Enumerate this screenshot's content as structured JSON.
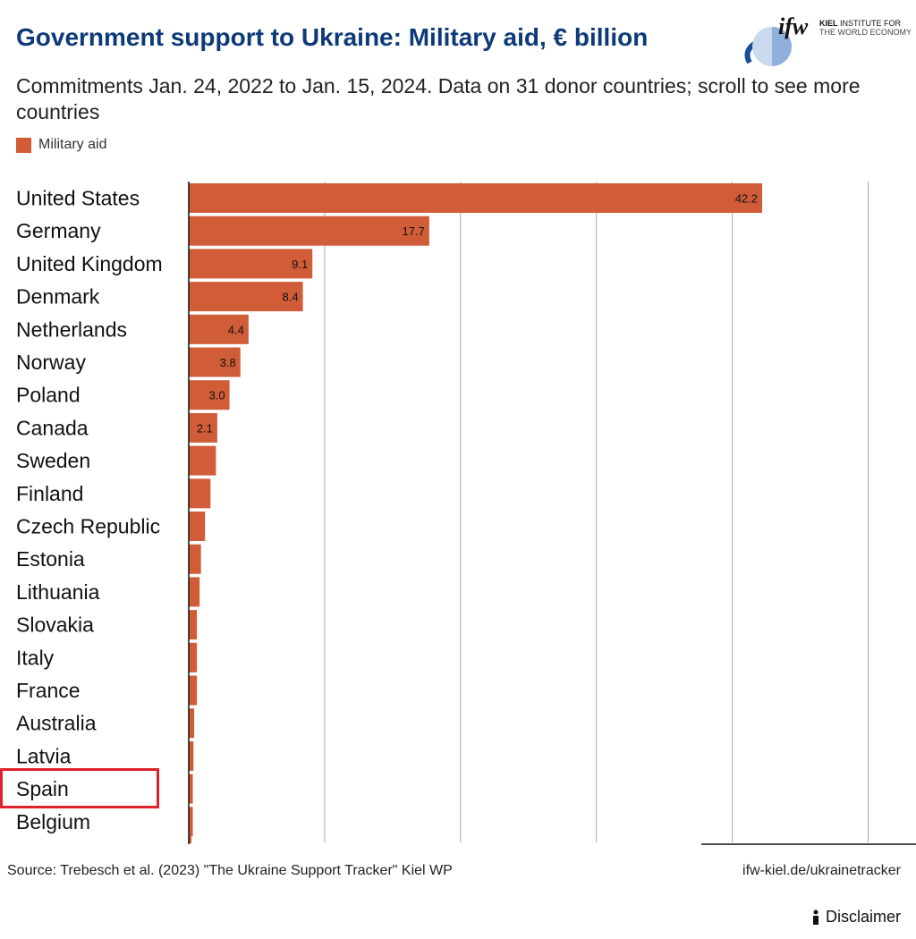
{
  "header": {
    "title": "Government support to Ukraine: Military aid, € billion",
    "subtitle": "Commitments Jan. 24, 2022 to Jan. 15, 2024. Data on 31 donor countries; scroll to see more countries",
    "logo_text": "ifw KIEL INSTITUTE FOR THE WORLD ECONOMY"
  },
  "colors": {
    "bar": "#d15c38",
    "title": "#0d3a78",
    "highlight": "#e0202a"
  },
  "chart_data": {
    "type": "bar",
    "orientation": "horizontal",
    "legend": [
      {
        "name": "Military aid",
        "color": "#d15c38"
      }
    ],
    "legend_placement": "top-left",
    "categories": [
      "United States",
      "Germany",
      "United Kingdom",
      "Denmark",
      "Netherlands",
      "Norway",
      "Poland",
      "Canada",
      "Sweden",
      "Finland",
      "Czech Republic",
      "Estonia",
      "Lithuania",
      "Slovakia",
      "Italy",
      "France",
      "Australia",
      "Latvia",
      "Spain",
      "Belgium"
    ],
    "series": [
      {
        "name": "Military aid",
        "values": [
          42.2,
          17.7,
          9.1,
          8.4,
          4.4,
          3.8,
          3.0,
          2.1,
          2.0,
          1.6,
          1.2,
          0.9,
          0.8,
          0.6,
          0.6,
          0.6,
          0.4,
          0.35,
          0.3,
          0.3
        ]
      }
    ],
    "data_labels": [
      "42.2",
      "17.7",
      "9.1",
      "8.4",
      "4.4",
      "3.8",
      "3.0",
      "2.1",
      "",
      "",
      "",
      "",
      "",
      "",
      "",
      "",
      "",
      "",
      "",
      ""
    ],
    "xlim": [
      0,
      50
    ],
    "gridlines": [
      10,
      20,
      30,
      40,
      50
    ],
    "grid": true,
    "highlighted_category": "Spain"
  },
  "footer": {
    "source": "Source: Trebesch et al. (2023) \"The Ukraine Support Tracker\" Kiel WP",
    "link": "ifw-kiel.de/ukrainetracker",
    "disclaimer": "Disclaimer",
    "disclaimer_icon": "info-icon"
  }
}
